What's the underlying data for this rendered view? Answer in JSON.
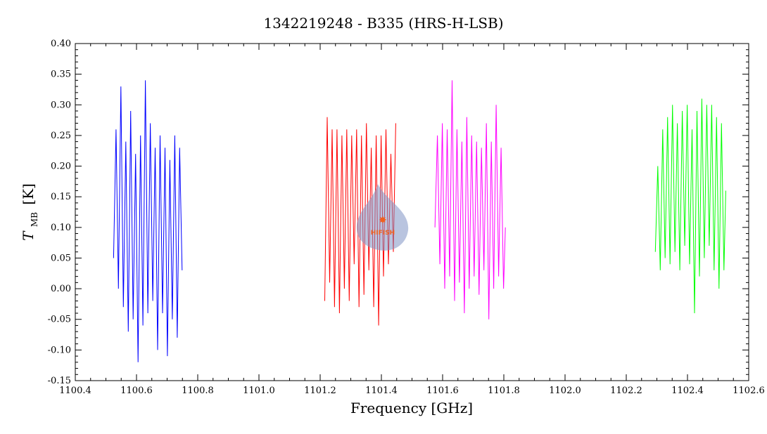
{
  "chart_data": {
    "type": "line",
    "title": "1342219248 - B335 (HRS-H-LSB)",
    "xlabel": "Frequency [GHz]",
    "ylabel_main": "T",
    "ylabel_sub": "MB",
    "ylabel_unit": "[K]",
    "xlim": [
      1100.4,
      1102.6
    ],
    "ylim": [
      -0.15,
      0.4
    ],
    "xticks": [
      "1100.4",
      "1100.6",
      "1100.8",
      "1101.0",
      "1101.2",
      "1101.4",
      "1101.6",
      "1101.8",
      "1102.0",
      "1102.2",
      "1102.4",
      "1102.6"
    ],
    "yticks": [
      "-0.15",
      "-0.10",
      "-0.05",
      "0.00",
      "0.05",
      "0.10",
      "0.15",
      "0.20",
      "0.25",
      "0.30",
      "0.35",
      "0.40"
    ],
    "grid": false,
    "series": [
      {
        "color": "#0000ff",
        "x": [
          1100.525,
          1100.533,
          1100.541,
          1100.549,
          1100.557,
          1100.565,
          1100.573,
          1100.581,
          1100.589,
          1100.597,
          1100.605,
          1100.613,
          1100.621,
          1100.629,
          1100.637,
          1100.645,
          1100.653,
          1100.661,
          1100.669,
          1100.677,
          1100.685,
          1100.693,
          1100.701,
          1100.709,
          1100.717,
          1100.725,
          1100.733,
          1100.741,
          1100.749
        ],
        "y": [
          0.05,
          0.26,
          0.0,
          0.33,
          -0.03,
          0.24,
          -0.07,
          0.29,
          -0.05,
          0.22,
          -0.12,
          0.25,
          -0.06,
          0.34,
          -0.04,
          0.27,
          -0.02,
          0.23,
          -0.1,
          0.25,
          -0.04,
          0.23,
          -0.11,
          0.21,
          -0.05,
          0.25,
          -0.08,
          0.23,
          0.03
        ]
      },
      {
        "color": "#ff0000",
        "x": [
          1101.215,
          1101.223,
          1101.231,
          1101.239,
          1101.247,
          1101.255,
          1101.263,
          1101.271,
          1101.279,
          1101.287,
          1101.295,
          1101.303,
          1101.311,
          1101.319,
          1101.327,
          1101.335,
          1101.343,
          1101.351,
          1101.359,
          1101.367,
          1101.375,
          1101.383,
          1101.391,
          1101.399,
          1101.407,
          1101.415,
          1101.423,
          1101.431,
          1101.439,
          1101.447
        ],
        "y": [
          -0.02,
          0.28,
          0.01,
          0.26,
          -0.03,
          0.26,
          -0.04,
          0.25,
          0.0,
          0.26,
          -0.02,
          0.25,
          0.04,
          0.26,
          -0.03,
          0.25,
          -0.01,
          0.27,
          0.03,
          0.23,
          -0.03,
          0.25,
          -0.06,
          0.25,
          0.02,
          0.26,
          0.04,
          0.22,
          0.06,
          0.27
        ]
      },
      {
        "color": "#ff00ff",
        "x": [
          1101.575,
          1101.583,
          1101.591,
          1101.599,
          1101.607,
          1101.615,
          1101.623,
          1101.631,
          1101.639,
          1101.647,
          1101.655,
          1101.663,
          1101.671,
          1101.679,
          1101.687,
          1101.695,
          1101.703,
          1101.711,
          1101.719,
          1101.727,
          1101.735,
          1101.743,
          1101.751,
          1101.759,
          1101.767,
          1101.775,
          1101.783,
          1101.791,
          1101.799,
          1101.805
        ],
        "y": [
          0.1,
          0.25,
          0.04,
          0.27,
          0.0,
          0.26,
          0.02,
          0.34,
          -0.02,
          0.26,
          0.01,
          0.24,
          -0.04,
          0.28,
          0.0,
          0.25,
          0.02,
          0.24,
          -0.01,
          0.23,
          0.03,
          0.27,
          -0.05,
          0.24,
          0.0,
          0.3,
          0.02,
          0.23,
          0.0,
          0.1
        ]
      },
      {
        "color": "#00ff00",
        "x": [
          1102.295,
          1102.303,
          1102.311,
          1102.319,
          1102.327,
          1102.335,
          1102.343,
          1102.351,
          1102.359,
          1102.367,
          1102.375,
          1102.383,
          1102.391,
          1102.399,
          1102.407,
          1102.415,
          1102.423,
          1102.431,
          1102.439,
          1102.447,
          1102.455,
          1102.463,
          1102.471,
          1102.479,
          1102.487,
          1102.495,
          1102.503,
          1102.511,
          1102.519,
          1102.525
        ],
        "y": [
          0.06,
          0.2,
          0.03,
          0.26,
          0.05,
          0.28,
          0.04,
          0.3,
          0.06,
          0.27,
          0.03,
          0.29,
          0.07,
          0.3,
          0.04,
          0.26,
          -0.04,
          0.29,
          0.02,
          0.31,
          0.05,
          0.3,
          0.07,
          0.3,
          0.03,
          0.28,
          0.0,
          0.27,
          0.03,
          0.16
        ]
      }
    ]
  },
  "logo": {
    "text": "HIFISH",
    "color": "#f06020"
  }
}
